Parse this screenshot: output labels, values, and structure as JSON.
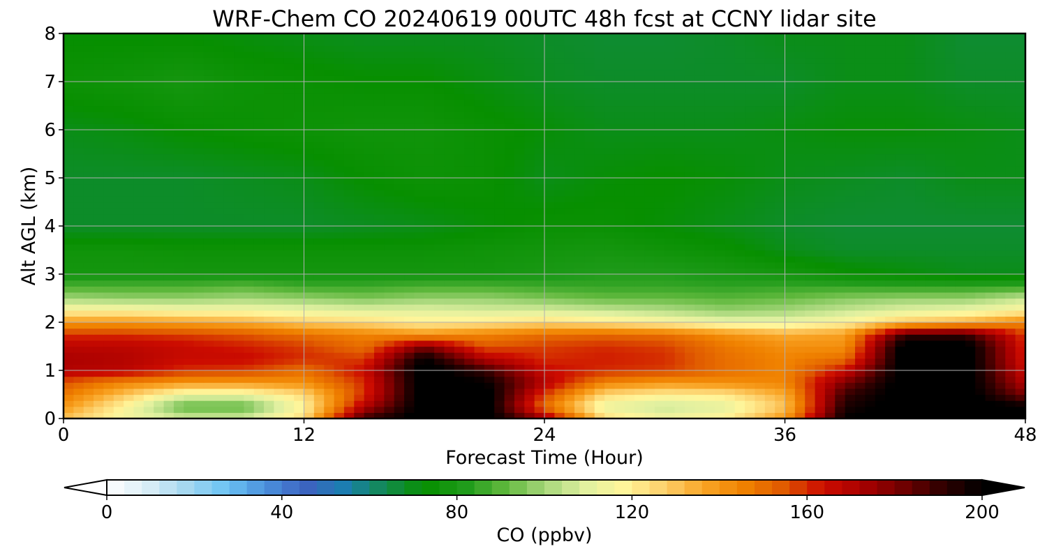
{
  "chart_data": {
    "type": "heatmap",
    "title": "WRF-Chem CO  20240619 00UTC 48h fcst at CCNY lidar site",
    "xlabel": "Forecast Time (Hour)",
    "ylabel": "Alt AGL (km)",
    "xlim": [
      0,
      48
    ],
    "ylim": [
      0,
      8
    ],
    "x_ticks": [
      0,
      12,
      24,
      36,
      48
    ],
    "y_ticks": [
      0,
      1,
      2,
      3,
      4,
      5,
      6,
      7,
      8
    ],
    "grid": true,
    "colorbar": {
      "label": "CO  (ppbv)",
      "range": [
        0,
        200
      ],
      "ticks": [
        0,
        40,
        80,
        120,
        160,
        200
      ],
      "extend": "both",
      "colors": [
        "#ffffff",
        "#dbeef7",
        "#a5d8f0",
        "#6cc3f4",
        "#4a90dc",
        "#3d62c0",
        "#1a7fb0",
        "#138a4e",
        "#078f00",
        "#1f9b1a",
        "#5fb83c",
        "#a5d67a",
        "#e0f0a0",
        "#fff59a",
        "#fdd06c",
        "#f9a526",
        "#f08200",
        "#e05a00",
        "#cc0c00",
        "#a80000",
        "#700000",
        "#300000",
        "#000000"
      ]
    },
    "x_hours": [
      0,
      3,
      6,
      9,
      12,
      15,
      18,
      21,
      24,
      27,
      30,
      33,
      36,
      39,
      42,
      45,
      48
    ],
    "z_km": [
      0,
      0.25,
      0.5,
      0.75,
      1,
      1.25,
      1.5,
      1.75,
      2,
      2.25,
      2.5,
      2.75,
      3,
      3.5,
      4,
      5,
      6,
      7,
      8
    ],
    "values": [
      [
        130,
        115,
        108,
        108,
        125,
        190,
        205,
        205,
        175,
        125,
        115,
        120,
        140,
        200,
        205,
        205,
        200
      ],
      [
        140,
        118,
        90,
        90,
        118,
        170,
        205,
        205,
        150,
        112,
        105,
        110,
        130,
        195,
        205,
        205,
        200
      ],
      [
        148,
        130,
        112,
        112,
        125,
        160,
        205,
        205,
        158,
        125,
        120,
        122,
        135,
        190,
        205,
        205,
        180
      ],
      [
        155,
        145,
        140,
        140,
        142,
        160,
        205,
        200,
        170,
        145,
        140,
        142,
        145,
        180,
        205,
        205,
        170
      ],
      [
        170,
        168,
        160,
        158,
        150,
        165,
        205,
        190,
        165,
        160,
        158,
        150,
        145,
        165,
        205,
        205,
        165
      ],
      [
        172,
        170,
        165,
        165,
        160,
        158,
        200,
        170,
        160,
        162,
        160,
        150,
        145,
        150,
        205,
        205,
        162
      ],
      [
        168,
        168,
        165,
        162,
        158,
        150,
        180,
        155,
        158,
        160,
        158,
        148,
        142,
        142,
        205,
        205,
        160
      ],
      [
        160,
        160,
        158,
        155,
        150,
        145,
        140,
        145,
        150,
        152,
        150,
        142,
        135,
        138,
        190,
        190,
        158
      ],
      [
        140,
        140,
        138,
        135,
        128,
        125,
        120,
        122,
        125,
        122,
        118,
        112,
        112,
        118,
        130,
        135,
        145
      ],
      [
        118,
        118,
        115,
        115,
        112,
        110,
        110,
        108,
        108,
        105,
        102,
        98,
        100,
        105,
        110,
        112,
        118
      ],
      [
        100,
        98,
        98,
        100,
        98,
        95,
        98,
        98,
        95,
        92,
        92,
        90,
        92,
        96,
        98,
        98,
        105
      ],
      [
        88,
        88,
        88,
        90,
        86,
        86,
        88,
        88,
        86,
        85,
        85,
        84,
        85,
        85,
        84,
        84,
        85
      ],
      [
        78,
        78,
        78,
        78,
        78,
        78,
        78,
        78,
        80,
        82,
        82,
        80,
        78,
        74,
        72,
        70,
        70
      ],
      [
        76,
        76,
        75,
        75,
        75,
        75,
        75,
        76,
        77,
        78,
        76,
        74,
        70,
        68,
        68,
        68,
        68
      ],
      [
        68,
        68,
        68,
        68,
        68,
        69,
        70,
        72,
        74,
        74,
        72,
        70,
        68,
        67,
        67,
        67,
        67
      ],
      [
        68,
        68,
        68,
        69,
        70,
        73,
        75,
        74,
        70,
        72,
        73,
        72,
        70,
        69,
        68,
        70,
        70
      ],
      [
        70,
        71,
        73,
        74,
        75,
        76,
        76,
        74,
        72,
        70,
        70,
        70,
        71,
        72,
        72,
        71,
        70
      ],
      [
        75,
        76,
        78,
        75,
        74,
        73,
        73,
        71,
        69,
        68,
        68,
        68,
        68,
        70,
        70,
        68,
        68
      ],
      [
        72,
        72,
        72,
        71,
        70,
        69,
        69,
        69,
        68,
        67,
        67,
        68,
        70,
        70,
        70,
        67,
        67
      ]
    ]
  }
}
